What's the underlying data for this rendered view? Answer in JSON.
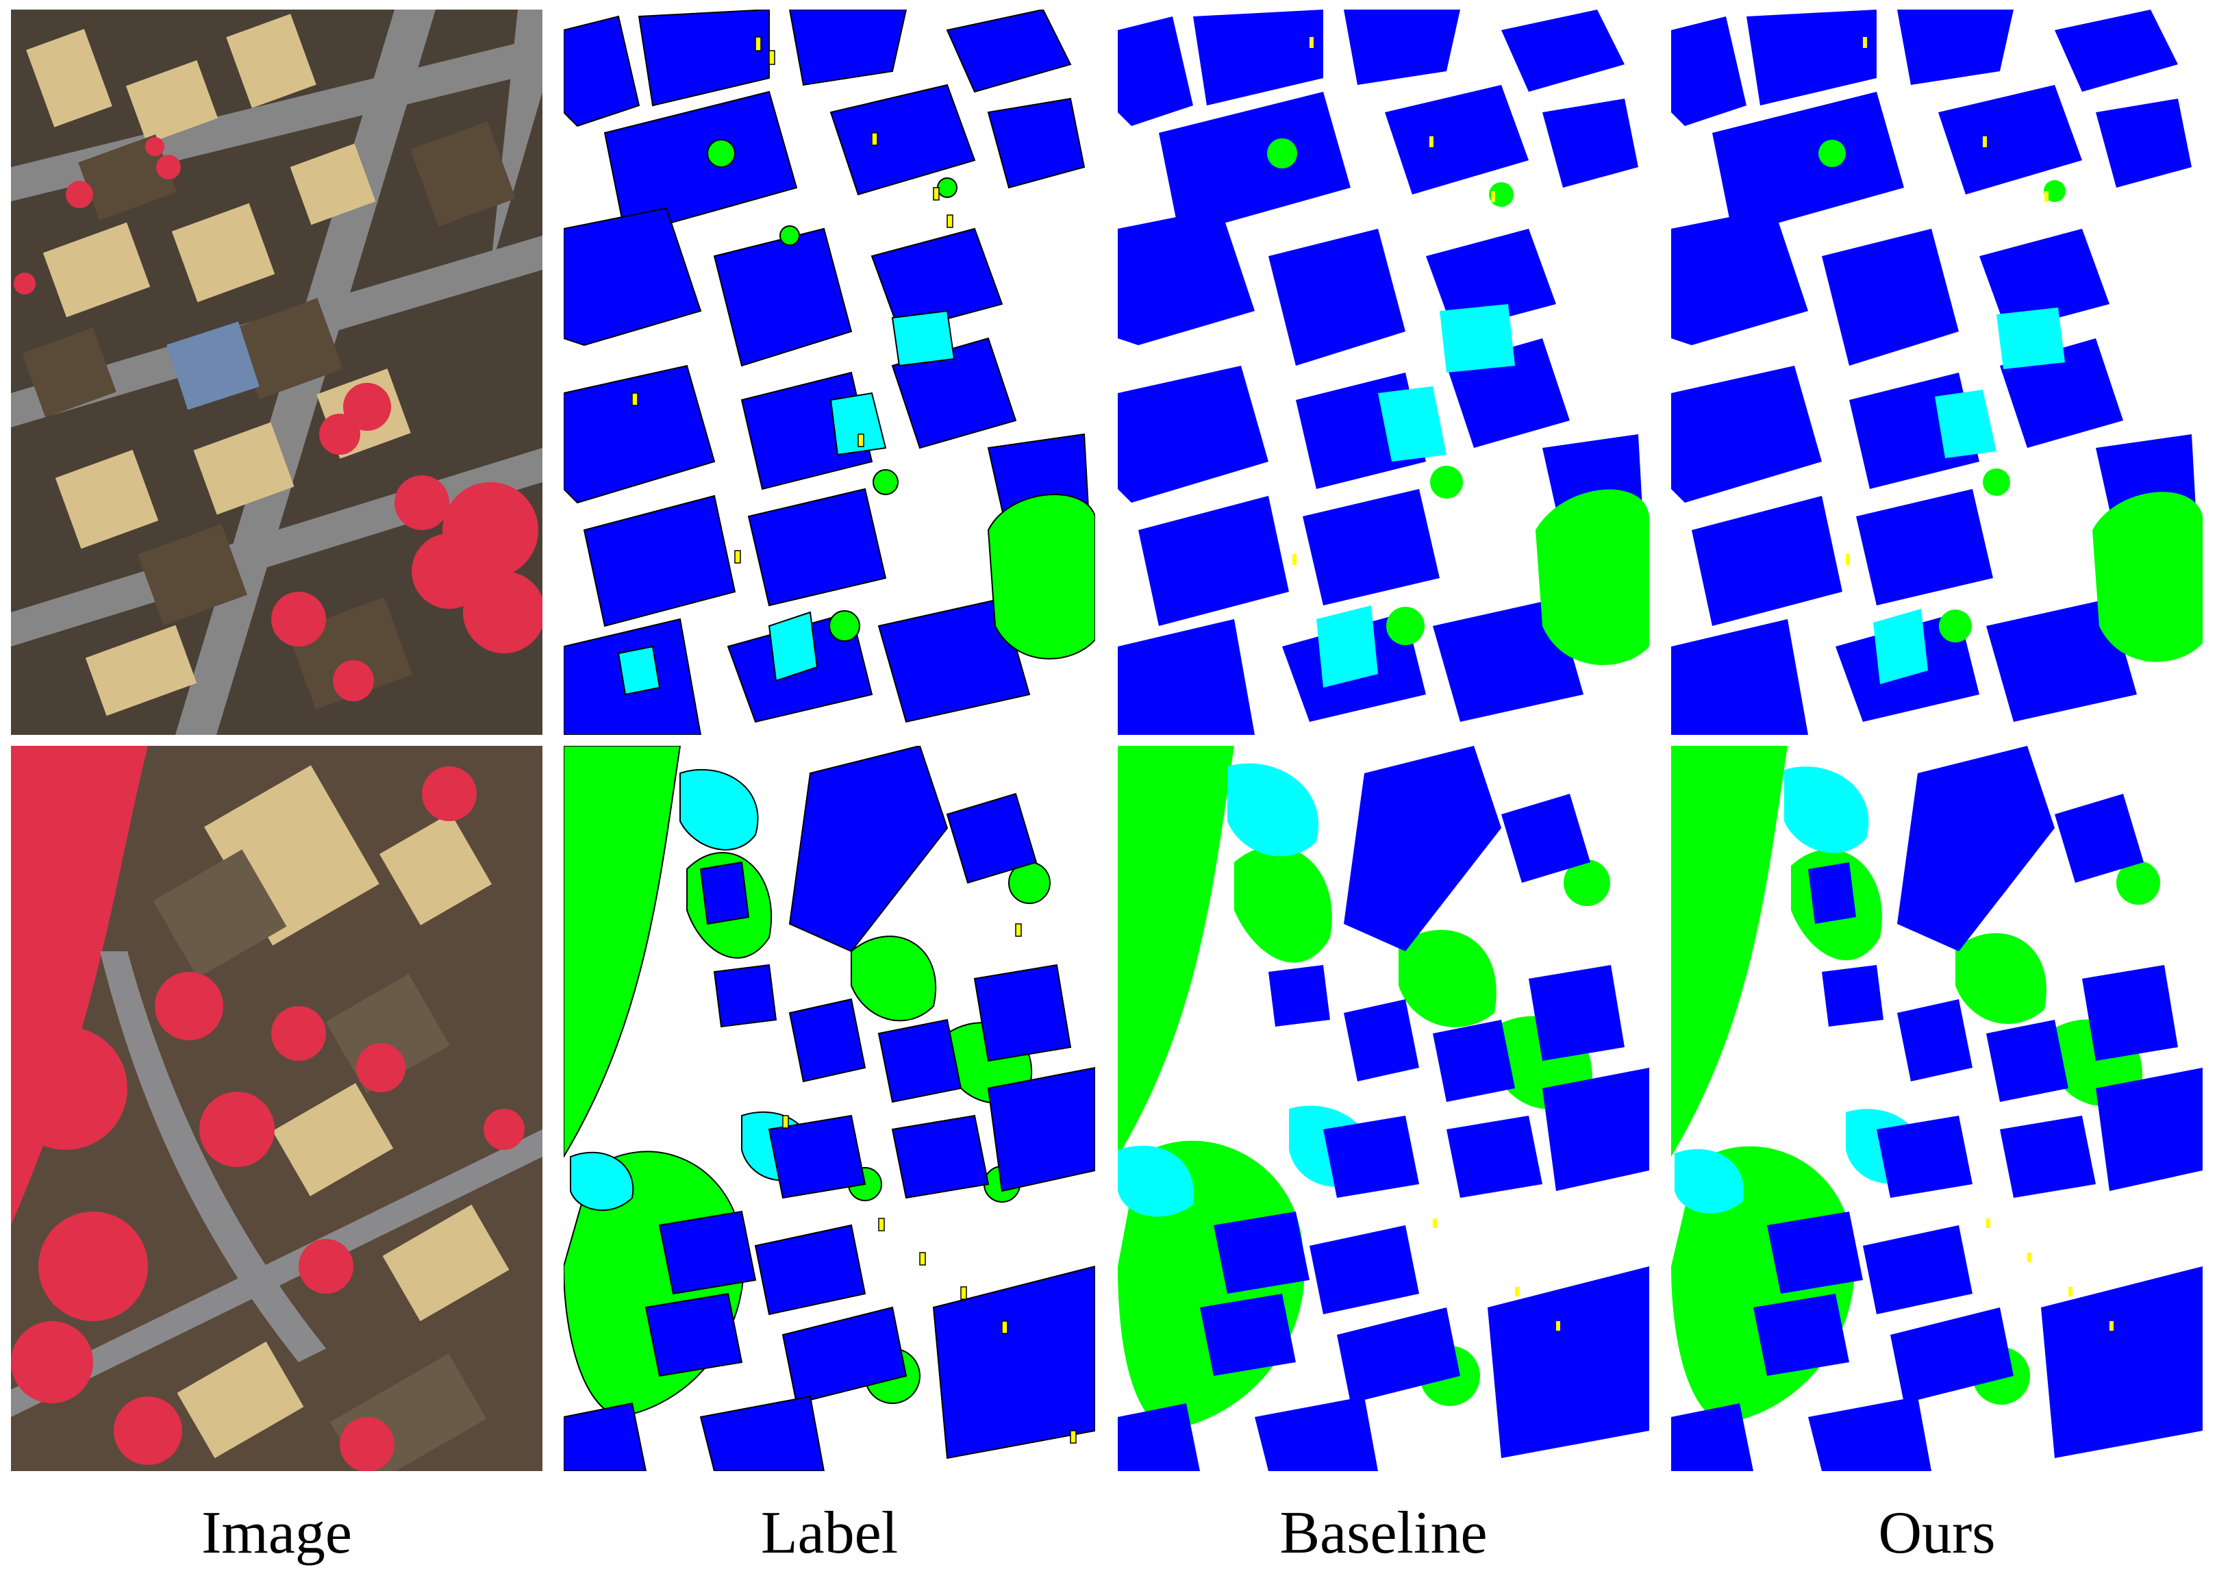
{
  "captions": [
    "Image",
    "Label",
    "Baseline",
    "Ours"
  ],
  "class_colors": {
    "impervious_surface": "#ffffff",
    "building": "#0000ff",
    "low_vegetation": "#00ffff",
    "tree": "#00ff00",
    "car": "#ffff00"
  },
  "photo_colors": {
    "roof_light": "#d8c08a",
    "roof_dark": "#5a4a38",
    "road": "#8a8a8c",
    "vegetation_ir": "#e0304a",
    "shadow": "#2c2a28"
  }
}
